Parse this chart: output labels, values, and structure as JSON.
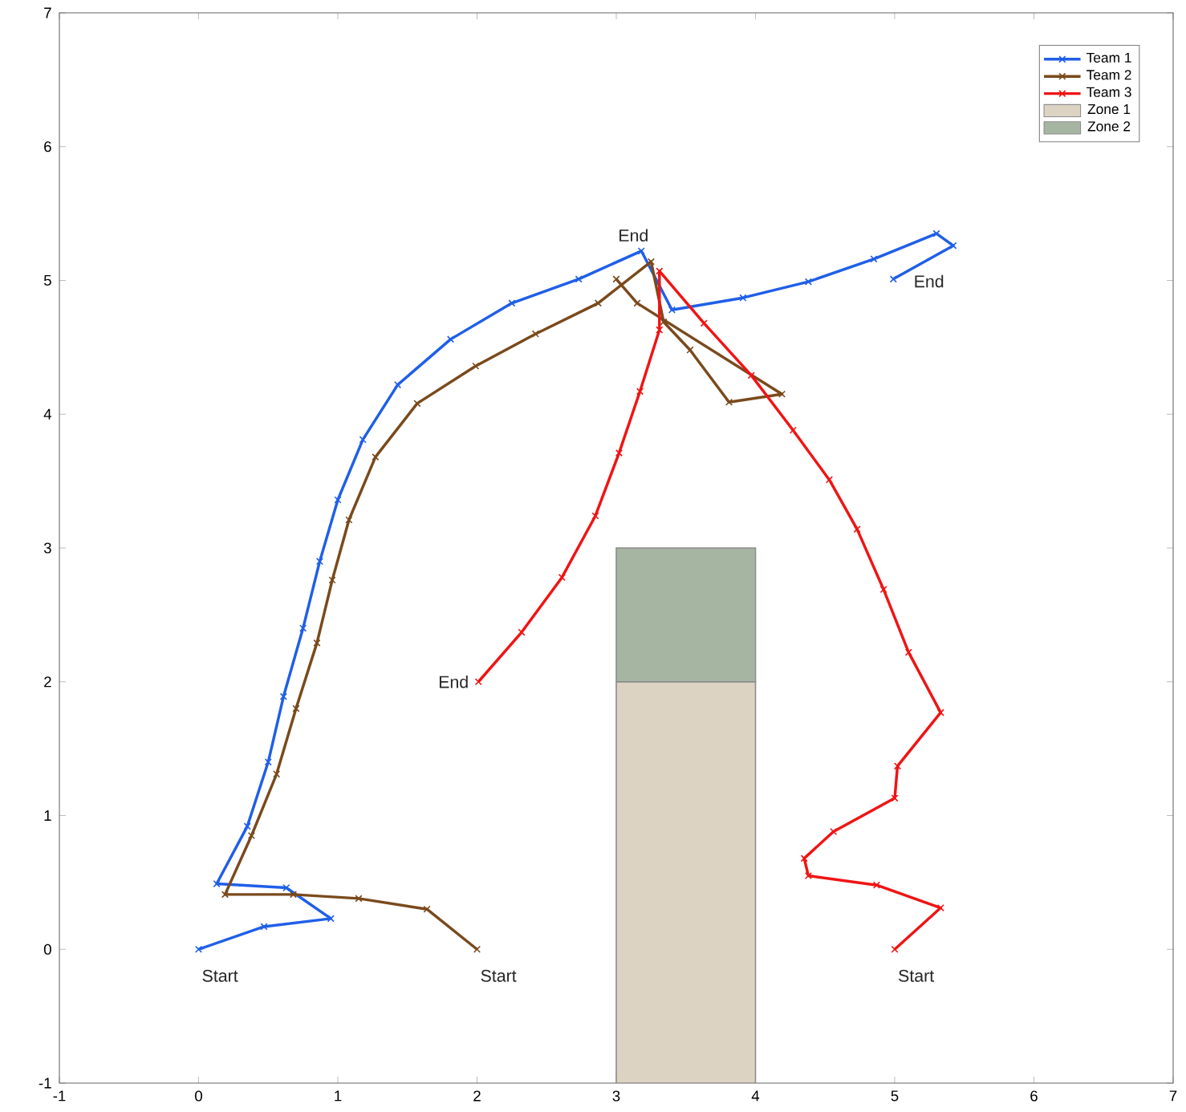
{
  "chart_data": {
    "type": "line",
    "xlim": [
      -1,
      7
    ],
    "ylim": [
      -1,
      7
    ],
    "xticks": [
      -1,
      0,
      1,
      2,
      3,
      4,
      5,
      6,
      7
    ],
    "yticks": [
      -1,
      0,
      1,
      2,
      3,
      4,
      5,
      6,
      7
    ],
    "grid": false,
    "legend": "top right",
    "marker": "cross",
    "series": [
      {
        "name": "Team 1",
        "color": "#1f5fe8",
        "x": [
          0,
          0.47,
          0.95,
          0.63,
          0.13,
          0.35,
          0.5,
          0.61,
          0.75,
          0.87,
          1.0,
          1.18,
          1.43,
          1.81,
          2.25,
          2.73,
          3.18,
          3.4,
          3.91,
          4.38,
          4.85,
          5.3,
          5.42,
          4.99
        ],
        "values": [
          0,
          0.17,
          0.23,
          0.46,
          0.49,
          0.92,
          1.4,
          1.89,
          2.4,
          2.9,
          3.36,
          3.81,
          4.22,
          4.56,
          4.83,
          5.01,
          5.22,
          4.78,
          4.87,
          4.99,
          5.16,
          5.35,
          5.26,
          5.01
        ]
      },
      {
        "name": "Team 2",
        "color": "#7a4a1c",
        "x": [
          2.0,
          1.64,
          1.15,
          0.68,
          0.19,
          0.38,
          0.56,
          0.7,
          0.85,
          0.96,
          1.08,
          1.27,
          1.57,
          1.99,
          2.42,
          2.87,
          3.25,
          3.34,
          3.53,
          3.81,
          4.19,
          3.15,
          3.0
        ],
        "values": [
          0,
          0.3,
          0.38,
          0.41,
          0.41,
          0.85,
          1.31,
          1.8,
          2.29,
          2.76,
          3.21,
          3.68,
          4.08,
          4.36,
          4.6,
          4.83,
          5.14,
          4.69,
          4.48,
          4.09,
          4.15,
          4.83,
          5.01
        ]
      },
      {
        "name": "Team 3",
        "color": "#f01414",
        "x": [
          5.0,
          5.33,
          4.87,
          4.38,
          4.35,
          4.56,
          5.0,
          5.02,
          5.33,
          5.1,
          4.92,
          4.73,
          4.53,
          4.27,
          3.97,
          3.63,
          3.31,
          3.31,
          3.17,
          3.02,
          2.85,
          2.61,
          2.32,
          2.01
        ],
        "values": [
          0,
          0.31,
          0.48,
          0.55,
          0.68,
          0.88,
          1.13,
          1.37,
          1.77,
          2.22,
          2.69,
          3.14,
          3.51,
          3.88,
          4.29,
          4.68,
          5.07,
          4.63,
          4.17,
          3.71,
          3.24,
          2.78,
          2.37,
          2.0
        ]
      },
      {
        "name": "Zone 1",
        "type": "bar",
        "color": "#ddd3c3",
        "x": [
          3.5
        ],
        "values": [
          3
        ],
        "base": [
          -1
        ]
      },
      {
        "name": "Zone 2",
        "type": "bar",
        "color": "#a6b5a2",
        "x": [
          3.5
        ],
        "values": [
          1
        ],
        "base": [
          2
        ]
      }
    ],
    "annotations": [
      {
        "text": "Start",
        "x": 0,
        "y": 0
      },
      {
        "text": "Start",
        "x": 2.0,
        "y": 0
      },
      {
        "text": "Start",
        "x": 5.0,
        "y": 0
      },
      {
        "text": "End",
        "x": 3.0,
        "y": 5.01
      },
      {
        "text": "End",
        "x": 4.99,
        "y": 5.01
      },
      {
        "text": "End",
        "x": 2.01,
        "y": 2.0
      }
    ]
  }
}
